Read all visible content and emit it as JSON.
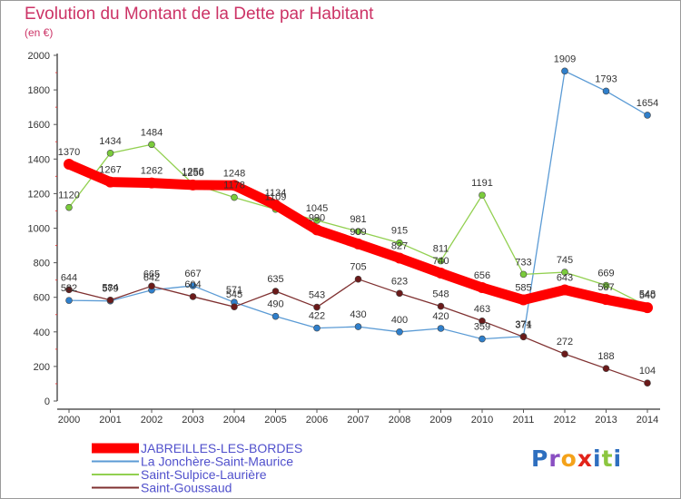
{
  "title": "Evolution du Montant de la Dette par Habitant",
  "unit": "(en €)",
  "logo_letters": [
    "P",
    "r",
    "o",
    "x",
    "i",
    "t",
    "i"
  ],
  "logo_colors": [
    "#2e6fbf",
    "#8a4fc2",
    "#f4a21a",
    "#e2231a",
    "#2e6fbf",
    "#8cc63f",
    "#2e6fbf"
  ],
  "chart_data": {
    "type": "line",
    "x": [
      2000,
      2001,
      2002,
      2003,
      2004,
      2005,
      2006,
      2007,
      2008,
      2009,
      2010,
      2011,
      2012,
      2013,
      2014
    ],
    "ylim": [
      0,
      2000
    ],
    "yticks": [
      0,
      200,
      400,
      600,
      800,
      1000,
      1200,
      1400,
      1600,
      1800,
      2000
    ],
    "grid": false,
    "legend_position": "bottom-left",
    "series": [
      {
        "name": "JABREILLES-LES-BORDES",
        "color": "#ff0000",
        "marker": "#ff0000",
        "values": [
          1370,
          1267,
          1262,
          1250,
          1248,
          1134,
          990,
          909,
          827,
          740,
          656,
          585,
          643,
          587,
          540
        ]
      },
      {
        "name": "La Jonchère-Saint-Maurice",
        "color": "#5b9bd5",
        "marker": "#2f7fcb",
        "values": [
          582,
          579,
          642,
          667,
          571,
          490,
          422,
          430,
          400,
          420,
          359,
          374,
          1909,
          1793,
          1654
        ]
      },
      {
        "name": "Saint-Sulpice-Laurière",
        "color": "#92d050",
        "marker": "#7acb3b",
        "values": [
          1120,
          1434,
          1484,
          1256,
          1178,
          1109,
          1045,
          981,
          915,
          811,
          1191,
          733,
          745,
          669,
          548
        ]
      },
      {
        "name": "Saint-Goussaud",
        "color": "#7f3030",
        "marker": "#6b1a1a",
        "values": [
          644,
          584,
          665,
          604,
          545,
          635,
          543,
          705,
          623,
          548,
          463,
          371,
          272,
          188,
          104
        ]
      }
    ]
  }
}
